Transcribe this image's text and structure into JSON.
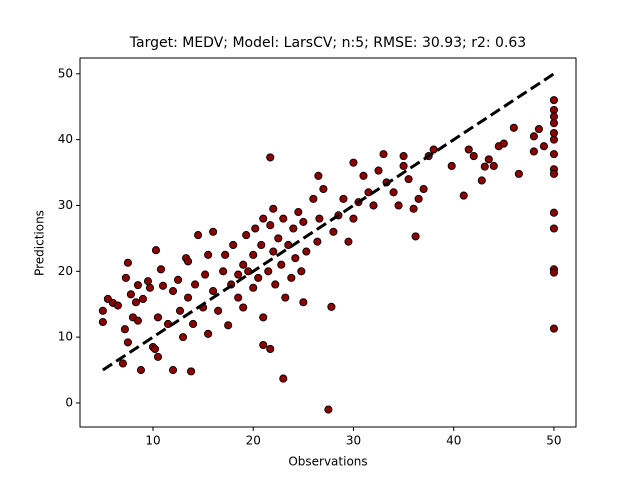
{
  "chart_data": {
    "type": "scatter",
    "title": "Target: MEDV; Model: LarsCV; n:5; RMSE: 30.93; r2: 0.63",
    "x_label": "Observations",
    "y_label": "Predictions",
    "color": "#8b0000",
    "edge_color": "#000000",
    "line_color": "#000000",
    "xlim": [
      2.72,
      52.2
    ],
    "ylim": [
      -3.65,
      52.4
    ],
    "xticks": [
      10,
      20,
      30,
      40,
      50
    ],
    "yticks": [
      0,
      10,
      20,
      30,
      40,
      50
    ],
    "identity_line": {
      "x": [
        5,
        50
      ],
      "y": [
        5,
        50
      ]
    },
    "x": [
      5,
      5,
      5.5,
      6,
      6.5,
      7,
      7.2,
      7.3,
      7.5,
      7.5,
      7.8,
      8,
      8.3,
      8.5,
      8.5,
      8.8,
      9,
      9.5,
      9.7,
      10,
      10.2,
      10.3,
      10.5,
      10.5,
      10.8,
      11,
      11.5,
      12,
      12,
      12.5,
      12.7,
      13,
      13.3,
      13.5,
      13.5,
      13.8,
      14,
      14.2,
      14.5,
      15,
      15.2,
      15.5,
      15.5,
      16,
      16,
      16.5,
      17,
      17.2,
      17.5,
      17.8,
      18,
      18.5,
      18.5,
      19,
      19,
      19.3,
      19.5,
      20,
      20,
      20.2,
      20.5,
      20.8,
      21,
      21,
      21,
      21.5,
      21.7,
      21.7,
      21.7,
      22,
      22,
      22.2,
      22.5,
      22.8,
      23,
      23,
      23.2,
      23.5,
      23.8,
      24,
      24.2,
      24.5,
      24.8,
      25,
      25,
      25.3,
      26,
      26.4,
      26.5,
      26.6,
      27,
      27.5,
      27.8,
      28,
      28.5,
      29,
      29.5,
      30,
      30,
      30.5,
      31,
      31.5,
      32,
      32.5,
      33,
      33.3,
      34,
      34.5,
      35,
      35,
      35.5,
      36,
      36.2,
      36.5,
      37,
      37.5,
      38,
      39.8,
      41,
      41.5,
      42,
      42.8,
      43.1,
      43.5,
      44,
      44.5,
      45,
      46,
      46.5,
      48,
      48,
      48.5,
      49,
      50,
      50,
      50,
      50,
      50,
      50,
      50,
      50,
      50,
      50,
      50,
      50,
      50,
      50
    ],
    "y": [
      12.3,
      14,
      15.8,
      15.2,
      14.8,
      6,
      11.2,
      19,
      21.3,
      9.2,
      16.5,
      13,
      15.3,
      17.9,
      12.5,
      5,
      15.8,
      18.5,
      17.5,
      8.5,
      8.2,
      23.2,
      7,
      13,
      20.3,
      17.8,
      12,
      5,
      17,
      18.7,
      14,
      10,
      22,
      21.5,
      16,
      4.8,
      12,
      18,
      25.5,
      14.5,
      19.5,
      10.5,
      22.5,
      26,
      17,
      14,
      20,
      22.5,
      11.8,
      18,
      24,
      16,
      19.5,
      21,
      14.5,
      25.5,
      20,
      22.5,
      17.5,
      26.5,
      19,
      24,
      28,
      13,
      8.8,
      20,
      37.3,
      27,
      8.2,
      23,
      29.5,
      18,
      25,
      21,
      28,
      3.7,
      16,
      24,
      19,
      26.5,
      22,
      29,
      20,
      27.5,
      15.3,
      23,
      31,
      24.5,
      34.5,
      28,
      32.5,
      -1,
      14.6,
      26,
      28.5,
      31,
      24.5,
      36.5,
      28,
      30.5,
      34.5,
      32,
      30,
      35.3,
      37.8,
      33.5,
      32,
      30,
      37.5,
      36,
      34,
      29.5,
      25.3,
      31,
      32.5,
      37.5,
      38.5,
      36,
      31.5,
      38.5,
      37.5,
      33.8,
      35.9,
      37,
      36,
      39,
      39.4,
      41.8,
      34.8,
      38.2,
      40.5,
      41.6,
      39,
      46,
      44.5,
      43.5,
      42.5,
      41,
      40,
      37.8,
      35.5,
      34.8,
      28.9,
      26.5,
      20.3,
      19.8,
      11.3
    ]
  }
}
